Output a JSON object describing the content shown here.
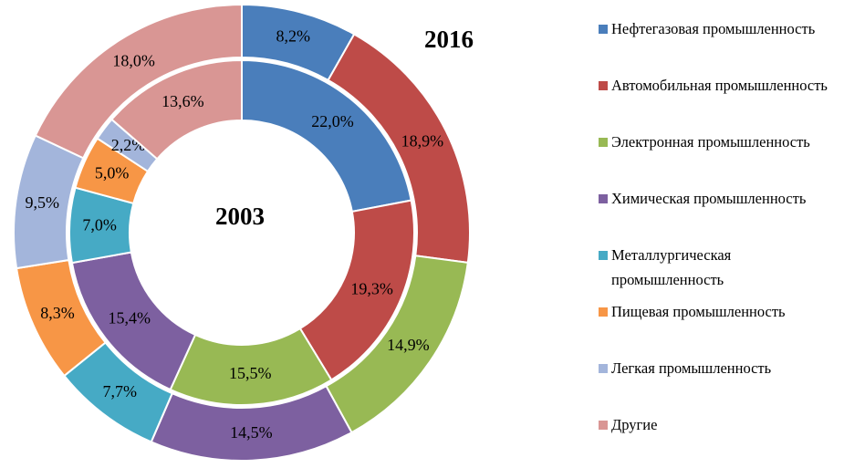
{
  "chart_data": {
    "type": "donut",
    "categories": [
      "Нефтегазовая промышленность",
      "Автомобильная промышленность",
      "Электронная промышленность",
      "Химическая промышленность",
      "Металлургическая промышленность",
      "Пищевая промышленность",
      "Легкая промышленность",
      "Другие"
    ],
    "colors": [
      "#4a7ebb",
      "#be4b48",
      "#98b954",
      "#7d60a0",
      "#46aac5",
      "#f79646",
      "#a3b5db",
      "#d99694"
    ],
    "series": [
      {
        "name": "2016",
        "values": [
          8.2,
          18.9,
          14.9,
          14.5,
          7.7,
          8.3,
          9.5,
          18.0
        ],
        "value_labels": [
          "8,2%",
          "18,9%",
          "14,9%",
          "14,5%",
          "7,7%",
          "8,3%",
          "9,5%",
          "18,0%"
        ]
      },
      {
        "name": "2003",
        "values": [
          22.0,
          19.3,
          15.5,
          15.4,
          7.0,
          5.0,
          2.2,
          13.6
        ],
        "value_labels": [
          "22,0%",
          "19,3%",
          "15,5%",
          "15,4%",
          "7,0%",
          "5,0%",
          "2,2%",
          "13,6%"
        ]
      }
    ]
  }
}
